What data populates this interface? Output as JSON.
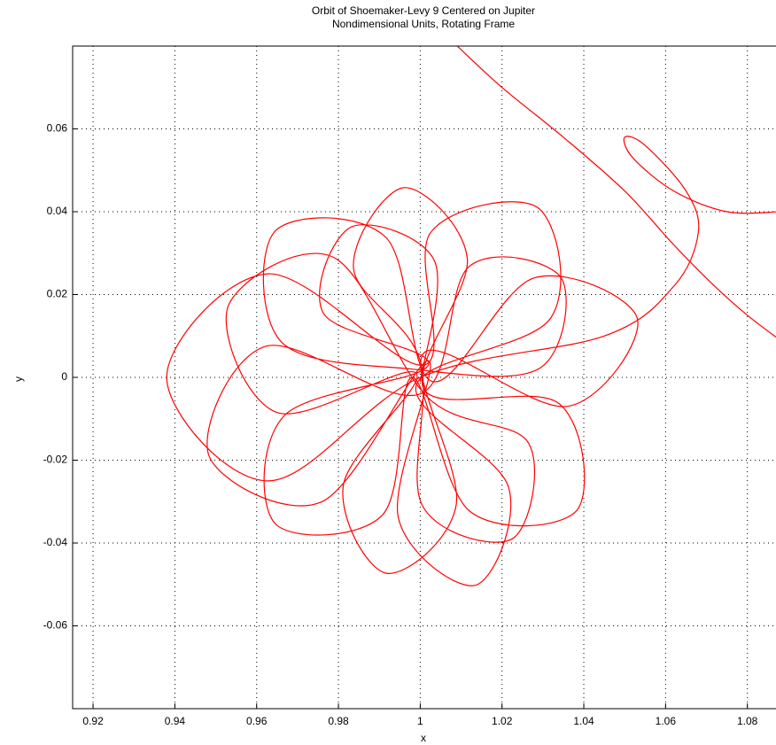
{
  "chart_data": {
    "type": "line",
    "title": "Orbit of Shoemaker-Levy 9 Centered on Jupiter",
    "subtitle": "Nondimensional Units, Rotating Frame",
    "xlabel": "x",
    "ylabel": "y",
    "color": "#ff0000",
    "grid": true,
    "xlim": [
      0.915,
      1.087
    ],
    "ylim": [
      -0.08,
      0.08
    ],
    "xticks": [
      0.92,
      0.94,
      0.96,
      0.98,
      1,
      1.02,
      1.04,
      1.06,
      1.08
    ],
    "yticks": [
      -0.06,
      -0.04,
      -0.02,
      0,
      0.02,
      0.04,
      0.06
    ],
    "x": [
      1.008,
      1.02,
      1.035,
      1.05,
      1.062,
      1.072,
      1.08,
      1.088,
      null,
      1.088,
      1.075,
      1.062,
      1.052,
      1.05,
      1.055,
      1.065,
      1.068,
      1.062,
      1.045,
      1.0,
      0.9628,
      0.938,
      0.9628,
      1.001,
      1.0025,
      1.0287,
      1.0319,
      0.999,
      1.0216,
      1.0135,
      0.9946,
      1.002,
      0.9758,
      0.9483,
      0.9622,
      1.0,
      1.012,
      1.0344,
      1.0292,
      0.998,
      0.9661,
      0.9646,
      0.9915,
      1.003,
      1.0278,
      1.0531,
      1.036,
      1.001,
      1.0088,
      0.9917,
      0.9812,
      0.999,
      0.965,
      0.953,
      0.9786,
      1.002,
      1.0265,
      1.0225,
      1.0005,
      1.0,
      0.9837,
      0.996,
      1.0115,
      1.001,
      1.0339,
      1.0383,
      1.0121,
      0.998,
      0.9908,
      0.9646,
      0.9668,
      1.002,
      0.9763,
      0.9831,
      1.0035,
      1.0
    ],
    "values": [
      0.081,
      0.07,
      0.058,
      0.045,
      0.032,
      0.022,
      0.015,
      0.009,
      null,
      0.04,
      0.04,
      0.045,
      0.053,
      0.058,
      0.056,
      0.045,
      0.035,
      0.022,
      0.01,
      0.0,
      -0.025,
      0.0,
      0.025,
      0.003,
      0.0349,
      0.041,
      0.0143,
      -0.002,
      -0.0265,
      -0.0502,
      -0.0337,
      0.004,
      -0.0301,
      -0.0188,
      0.0075,
      -0.004,
      0.0268,
      0.0241,
      0.0022,
      0.002,
      0.0085,
      0.0354,
      0.0339,
      -0.001,
      0.024,
      0.0142,
      -0.007,
      0.006,
      -0.0308,
      -0.0473,
      -0.026,
      0.001,
      -0.0085,
      0.0171,
      0.0291,
      -0.005,
      -0.0159,
      -0.039,
      -0.0309,
      0.004,
      0.0263,
      0.0458,
      0.0287,
      -0.003,
      -0.0063,
      -0.0321,
      -0.0323,
      0.0,
      -0.0332,
      -0.0354,
      -0.0092,
      0.003,
      0.0155,
      0.0363,
      0.0281,
      -0.001
    ]
  }
}
